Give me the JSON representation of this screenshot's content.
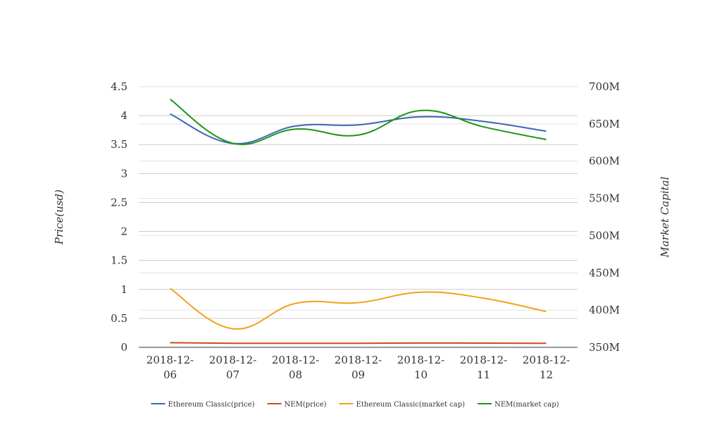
{
  "chart_data": {
    "type": "line",
    "categories": [
      "2018-12-06",
      "2018-12-07",
      "2018-12-08",
      "2018-12-09",
      "2018-12-10",
      "2018-12-11",
      "2018-12-12"
    ],
    "category_labels": [
      [
        "2018-12-",
        "06"
      ],
      [
        "2018-12-",
        "07"
      ],
      [
        "2018-12-",
        "08"
      ],
      [
        "2018-12-",
        "09"
      ],
      [
        "2018-12-",
        "10"
      ],
      [
        "2018-12-",
        "11"
      ],
      [
        "2018-12-",
        "12"
      ]
    ],
    "ylabel": "Price(usd)",
    "y2label": "Market Capital",
    "ylim": [
      0,
      4.5
    ],
    "y2lim": [
      350000000,
      700000000
    ],
    "yticks": [
      0,
      0.5,
      1,
      1.5,
      2,
      2.5,
      3,
      3.5,
      4,
      4.5
    ],
    "ytick_labels": [
      "0",
      "0.5",
      "1",
      "1.5",
      "2",
      "2.5",
      "3",
      "3.5",
      "4",
      "4.5"
    ],
    "y2ticks": [
      350000000,
      400000000,
      450000000,
      500000000,
      550000000,
      600000000,
      650000000,
      700000000
    ],
    "y2tick_labels": [
      "350M",
      "400M",
      "450M",
      "500M",
      "550M",
      "600M",
      "650M",
      "700M"
    ],
    "grid": true,
    "legend_position": "bottom",
    "series": [
      {
        "name": "Ethereum Classic(price)",
        "axis": "left",
        "color": "#3c67b6",
        "values": [
          4.03,
          3.52,
          3.82,
          3.84,
          3.98,
          3.9,
          3.73
        ]
      },
      {
        "name": "NEM(price)",
        "axis": "left",
        "color": "#d04a1c",
        "values": [
          0.08,
          0.07,
          0.07,
          0.07,
          0.075,
          0.073,
          0.07
        ]
      },
      {
        "name": "Ethereum Classic(market cap)",
        "axis": "right",
        "color": "#f3a01c",
        "values": [
          429000000,
          375000000,
          409000000,
          410000000,
          424000000,
          416000000,
          398000000
        ]
      },
      {
        "name": "NEM(market cap)",
        "axis": "right",
        "color": "#1e9419",
        "values": [
          683000000,
          624000000,
          643000000,
          635000000,
          668000000,
          646000000,
          629000000
        ]
      }
    ]
  }
}
